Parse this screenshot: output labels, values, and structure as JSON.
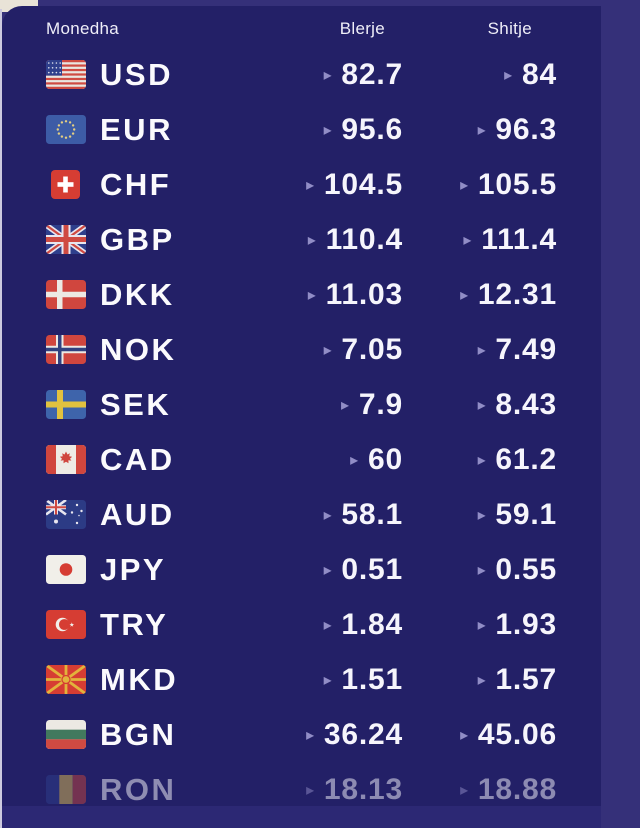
{
  "table": {
    "headers": {
      "currency": "Monedha",
      "buy": "Blerje",
      "sell": "Shitje"
    },
    "arrow_glyph": "▸",
    "rows": [
      {
        "code": "USD",
        "flag": "us",
        "buy": "82.7",
        "sell": "84",
        "muted": false
      },
      {
        "code": "EUR",
        "flag": "eu",
        "buy": "95.6",
        "sell": "96.3",
        "muted": false
      },
      {
        "code": "CHF",
        "flag": "ch",
        "buy": "104.5",
        "sell": "105.5",
        "muted": false
      },
      {
        "code": "GBP",
        "flag": "gb",
        "buy": "110.4",
        "sell": "111.4",
        "muted": false
      },
      {
        "code": "DKK",
        "flag": "dk",
        "buy": "11.03",
        "sell": "12.31",
        "muted": false
      },
      {
        "code": "NOK",
        "flag": "no",
        "buy": "7.05",
        "sell": "7.49",
        "muted": false
      },
      {
        "code": "SEK",
        "flag": "se",
        "buy": "7.9",
        "sell": "8.43",
        "muted": false
      },
      {
        "code": "CAD",
        "flag": "ca",
        "buy": "60",
        "sell": "61.2",
        "muted": false
      },
      {
        "code": "AUD",
        "flag": "au",
        "buy": "58.1",
        "sell": "59.1",
        "muted": false
      },
      {
        "code": "JPY",
        "flag": "jp",
        "buy": "0.51",
        "sell": "0.55",
        "muted": false
      },
      {
        "code": "TRY",
        "flag": "tr",
        "buy": "1.84",
        "sell": "1.93",
        "muted": false
      },
      {
        "code": "MKD",
        "flag": "mk",
        "buy": "1.51",
        "sell": "1.57",
        "muted": false
      },
      {
        "code": "BGN",
        "flag": "bg",
        "buy": "36.24",
        "sell": "45.06",
        "muted": false
      },
      {
        "code": "RON",
        "flag": "ro",
        "buy": "18.13",
        "sell": "18.88",
        "muted": true
      }
    ]
  },
  "colors": {
    "page_bg": "#353079",
    "panel_bg": "#232067",
    "footer_band": "#2c2874",
    "arrow": "#918dc6",
    "corner_beige": "#e9e3d7",
    "value_text": "#f6f5fc",
    "header_text": "#efeef8"
  }
}
